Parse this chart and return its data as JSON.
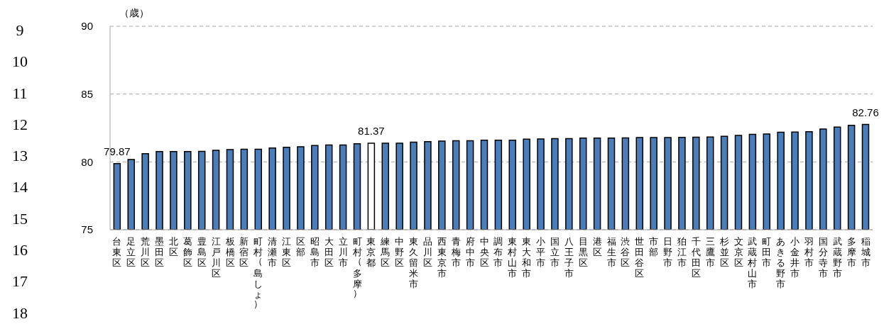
{
  "chart_data": {
    "type": "bar",
    "ylabel": "（歳）",
    "categories": [
      "台東区",
      "足立区",
      "荒川区",
      "墨田区",
      "北区",
      "葛飾区",
      "豊島区",
      "江戸川区",
      "板橋区",
      "新宿区",
      "町村（島しょ）",
      "清瀬市",
      "江東区",
      "区部",
      "昭島市",
      "大田区",
      "立川市",
      "町村（多摩）",
      "東京都",
      "練馬区",
      "中野区",
      "東久留米市",
      "品川区",
      "西東京市",
      "青梅市",
      "府中市",
      "中央区",
      "調布市",
      "東村山市",
      "東大和市",
      "小平市",
      "国立市",
      "八王子市",
      "目黒区",
      "港区",
      "福生市",
      "渋谷区",
      "世田谷区",
      "市部",
      "日野市",
      "狛江市",
      "千代田区",
      "三鷹市",
      "杉並区",
      "文京区",
      "武蔵村山市",
      "町田市",
      "あきる野市",
      "小金井市",
      "羽村市",
      "国分寺市",
      "武蔵野市",
      "多摩市",
      "稲城市"
    ],
    "values": [
      79.87,
      80.17,
      80.6,
      80.76,
      80.76,
      80.76,
      80.77,
      80.86,
      80.9,
      80.93,
      80.93,
      81.02,
      81.07,
      81.12,
      81.2,
      81.25,
      81.25,
      81.34,
      81.37,
      81.37,
      81.37,
      81.46,
      81.5,
      81.53,
      81.56,
      81.56,
      81.6,
      81.6,
      81.6,
      81.68,
      81.69,
      81.72,
      81.72,
      81.75,
      81.75,
      81.76,
      81.77,
      81.79,
      81.8,
      81.8,
      81.81,
      81.82,
      81.84,
      81.89,
      81.95,
      82.03,
      82.06,
      82.18,
      82.2,
      82.23,
      82.42,
      82.56,
      82.7,
      82.76
    ],
    "colors": [
      "#4a7ebb",
      "#4a7ebb",
      "#4a7ebb",
      "#4a7ebb",
      "#4a7ebb",
      "#4a7ebb",
      "#4a7ebb",
      "#4a7ebb",
      "#4a7ebb",
      "#4a7ebb",
      "#4a7ebb",
      "#4a7ebb",
      "#4a7ebb",
      "#4a7ebb",
      "#4a7ebb",
      "#4a7ebb",
      "#4a7ebb",
      "#4a7ebb",
      "#ffffff",
      "#4a7ebb",
      "#4a7ebb",
      "#4a7ebb",
      "#4a7ebb",
      "#4a7ebb",
      "#4a7ebb",
      "#4a7ebb",
      "#4a7ebb",
      "#4a7ebb",
      "#4a7ebb",
      "#4a7ebb",
      "#4a7ebb",
      "#4a7ebb",
      "#4a7ebb",
      "#4a7ebb",
      "#4a7ebb",
      "#4a7ebb",
      "#4a7ebb",
      "#4a7ebb",
      "#4a7ebb",
      "#4a7ebb",
      "#4a7ebb",
      "#4a7ebb",
      "#4a7ebb",
      "#4a7ebb",
      "#4a7ebb",
      "#4a7ebb",
      "#4a7ebb",
      "#4a7ebb",
      "#4a7ebb",
      "#4a7ebb",
      "#4a7ebb",
      "#4a7ebb",
      "#4a7ebb",
      "#4a7ebb"
    ],
    "value_labels": [
      "79.87",
      null,
      null,
      null,
      null,
      null,
      null,
      null,
      null,
      null,
      null,
      null,
      null,
      null,
      null,
      null,
      null,
      null,
      "81.37",
      null,
      null,
      null,
      null,
      null,
      null,
      null,
      null,
      null,
      null,
      null,
      null,
      null,
      null,
      null,
      null,
      null,
      null,
      null,
      null,
      null,
      null,
      null,
      null,
      null,
      null,
      null,
      null,
      null,
      null,
      null,
      null,
      null,
      null,
      "82.76"
    ],
    "ylim": [
      75,
      90
    ],
    "yticks": [
      75,
      80,
      85,
      90
    ],
    "grid": "y",
    "line_style": "dashed",
    "annotations": [
      "9",
      "10",
      "11",
      "12",
      "13",
      "14",
      "15",
      "16",
      "17",
      "18"
    ]
  }
}
